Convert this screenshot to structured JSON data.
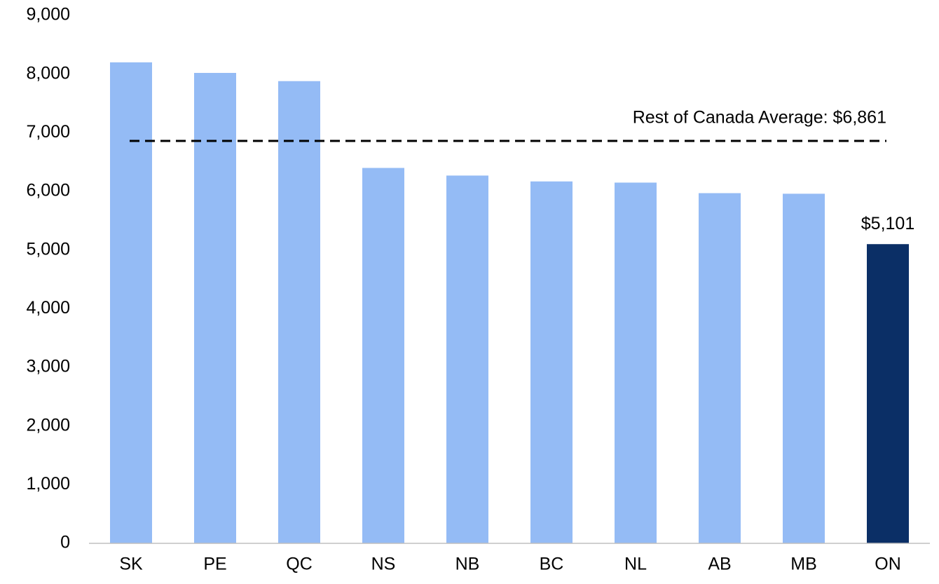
{
  "chart_data": {
    "type": "bar",
    "categories": [
      "SK",
      "PE",
      "QC",
      "NS",
      "NB",
      "BC",
      "NL",
      "AB",
      "MB",
      "ON"
    ],
    "values": [
      8200,
      8020,
      7880,
      6400,
      6270,
      6170,
      6150,
      5970,
      5960,
      5101
    ],
    "value_labels": [
      null,
      null,
      null,
      null,
      null,
      null,
      null,
      null,
      null,
      "$5,101"
    ],
    "colors": [
      "#94bbf5",
      "#94bbf5",
      "#94bbf5",
      "#94bbf5",
      "#94bbf5",
      "#94bbf5",
      "#94bbf5",
      "#94bbf5",
      "#94bbf5",
      "#0b2f66"
    ],
    "ylim": [
      0,
      9000
    ],
    "yticks": [
      0,
      {
        "value": 1000,
        "label": "1,000"
      },
      {
        "value": 2000,
        "label": "2,000"
      },
      {
        "value": 3000,
        "label": "3,000"
      },
      {
        "value": 4000,
        "label": "4,000"
      },
      {
        "value": 5000,
        "label": "5,000"
      },
      {
        "value": 6000,
        "label": "6,000"
      },
      {
        "value": 7000,
        "label": "7,000"
      },
      {
        "value": 8000,
        "label": "8,000"
      },
      {
        "value": 9000,
        "label": "9,000"
      }
    ],
    "grid": false,
    "reference_line": {
      "text": "Rest of Canada Average: $6,861",
      "value": 6861,
      "color": "#000000"
    }
  }
}
